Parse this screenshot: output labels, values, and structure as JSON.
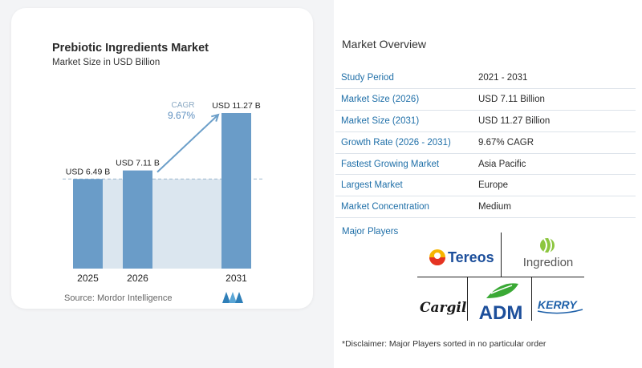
{
  "chart_data": {
    "type": "bar",
    "title": "Prebiotic Ingredients Market",
    "subtitle": "Market Size in USD Billion",
    "categories": [
      "2025",
      "2026",
      "2031"
    ],
    "values": [
      6.49,
      7.11,
      11.27
    ],
    "data_labels": [
      "USD 6.49 B",
      "USD 7.11 B",
      "USD 11.27 B"
    ],
    "ylim": [
      0,
      12.2
    ],
    "grid": false,
    "reference_line_value": 6.49,
    "annotation": {
      "label": "CAGR",
      "value": "9.67%"
    },
    "colors": {
      "bar": "#6a9cc8",
      "bar_top": "#5b8fbe",
      "band": "#dbe6ef",
      "arrow": "#6c9fc9",
      "cagr_label": "#8aa8c2",
      "cagr_value": "#5e8fbf"
    }
  },
  "source": "Source:  Mordor Intelligence",
  "overview": {
    "title": "Market Overview",
    "rows": [
      {
        "label": "Study Period",
        "value": "2021 - 2031"
      },
      {
        "label": "Market Size (2026)",
        "value": "USD 7.11 Billion"
      },
      {
        "label": "Market Size (2031)",
        "value": "USD 11.27 Billion"
      },
      {
        "label": "Growth Rate (2026 - 2031)",
        "value": "9.67% CAGR"
      },
      {
        "label": "Fastest Growing Market",
        "value": "Asia Pacific"
      },
      {
        "label": "Largest Market",
        "value": "Europe"
      },
      {
        "label": "Market Concentration",
        "value": "Medium"
      }
    ]
  },
  "players": {
    "title": "Major Players",
    "logos": [
      "Tereos",
      "Ingredion",
      "Cargill",
      "ADM",
      "KERRY"
    ]
  },
  "disclaimer": "*Disclaimer: Major Players sorted in no particular order"
}
